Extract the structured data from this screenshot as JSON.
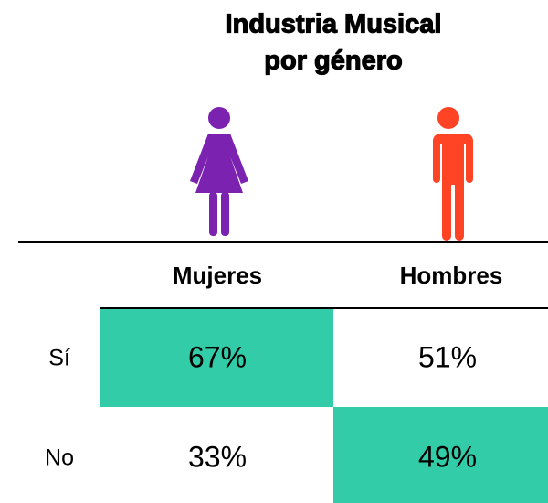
{
  "title": [
    "Industria Musical",
    "por género"
  ],
  "table": {
    "columns": [
      "Mujeres",
      "Hombres"
    ],
    "rows": [
      [
        "Sí",
        "67%",
        "51%"
      ],
      [
        "No",
        "33%",
        "49%"
      ]
    ]
  }
}
